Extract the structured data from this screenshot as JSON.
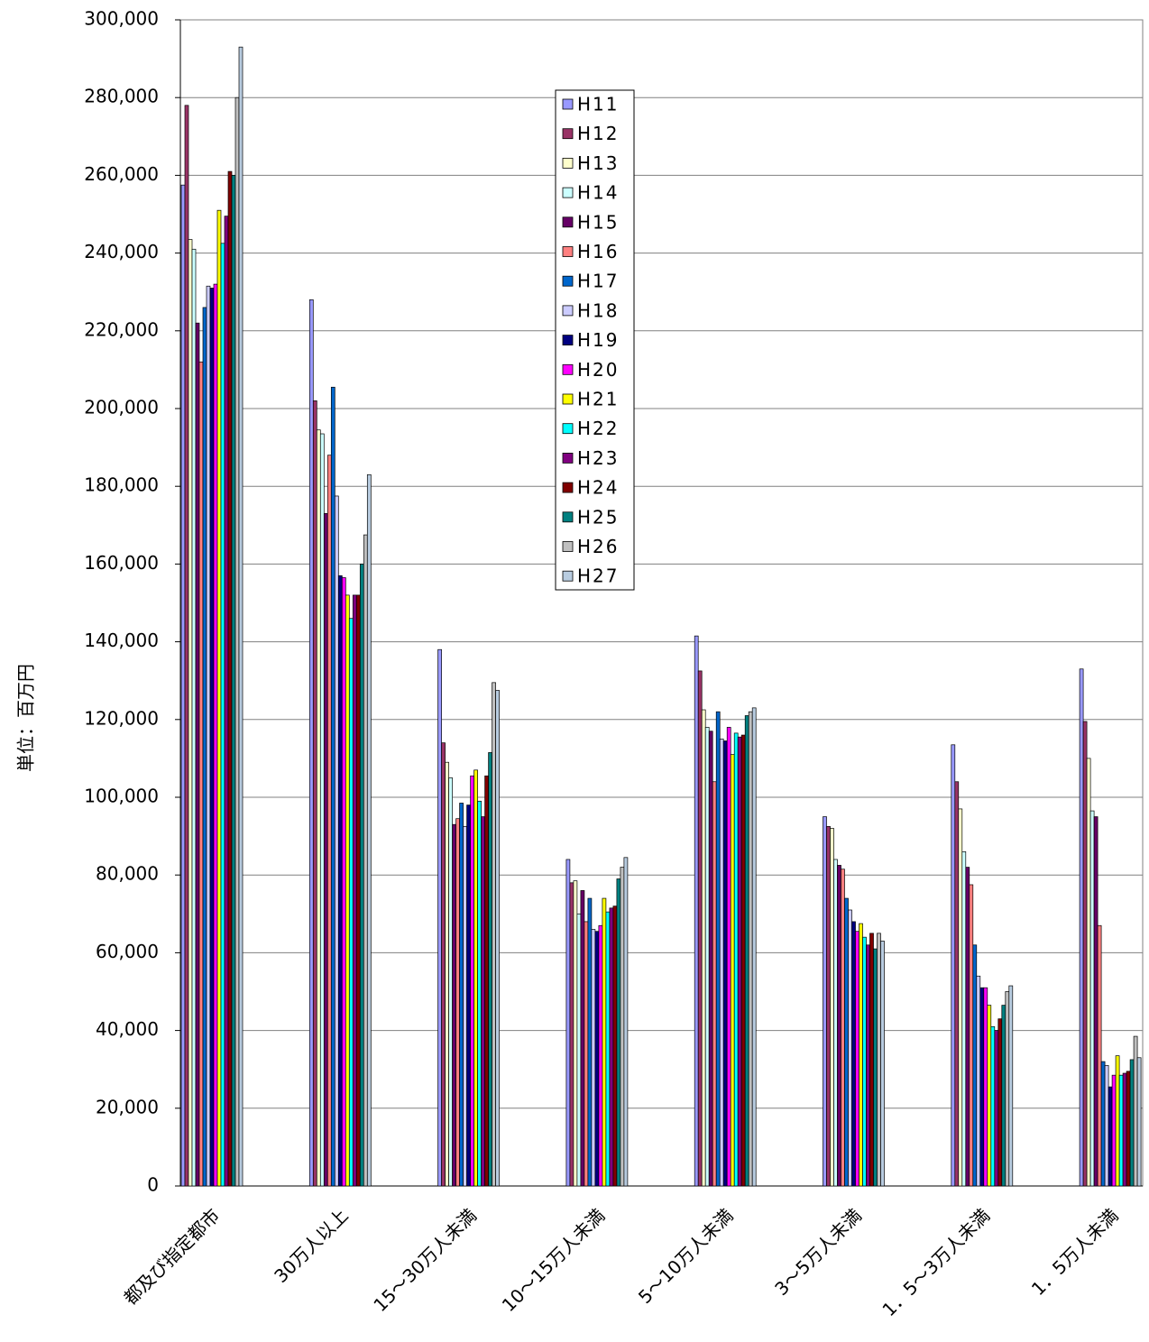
{
  "chart_data": {
    "type": "bar",
    "y_label": "単位：百万円",
    "categories": [
      "都及び指定都市",
      "30万人以上",
      "15～30万人未満",
      "10～15万人未満",
      "5～10万人未満",
      "3～5万人未満",
      "1．5～3万人未満",
      "1．5万人未満"
    ],
    "series": [
      {
        "name": "H11",
        "color": "#9999ff",
        "values": [
          257500,
          228000,
          138000,
          84000,
          141500,
          95000,
          113500,
          133000
        ]
      },
      {
        "name": "H12",
        "color": "#993366",
        "values": [
          278000,
          202000,
          114000,
          78000,
          132500,
          92500,
          104000,
          119500
        ]
      },
      {
        "name": "H13",
        "color": "#ffffcc",
        "values": [
          243500,
          194500,
          109000,
          78500,
          122500,
          92000,
          97000,
          110000
        ]
      },
      {
        "name": "H14",
        "color": "#ccffff",
        "values": [
          241000,
          193500,
          105000,
          70000,
          118000,
          84000,
          86000,
          96500
        ]
      },
      {
        "name": "H15",
        "color": "#660066",
        "values": [
          222000,
          173000,
          93000,
          76000,
          117000,
          82500,
          82000,
          95000
        ]
      },
      {
        "name": "H16",
        "color": "#ff8080",
        "values": [
          212000,
          188000,
          94500,
          68000,
          104000,
          81500,
          77500,
          67000
        ]
      },
      {
        "name": "H17",
        "color": "#0066cc",
        "values": [
          226000,
          205500,
          98500,
          74000,
          122000,
          74000,
          62000,
          32000
        ]
      },
      {
        "name": "H18",
        "color": "#ccccff",
        "values": [
          231500,
          177500,
          92500,
          66000,
          115000,
          71000,
          54000,
          31000
        ]
      },
      {
        "name": "H19",
        "color": "#000080",
        "values": [
          231000,
          157000,
          98000,
          65500,
          114500,
          68000,
          51000,
          25500
        ]
      },
      {
        "name": "H20",
        "color": "#ff00ff",
        "values": [
          232000,
          156500,
          105500,
          67000,
          118000,
          65500,
          51000,
          28500
        ]
      },
      {
        "name": "H21",
        "color": "#ffff00",
        "values": [
          251000,
          152000,
          107000,
          74000,
          111000,
          67500,
          46500,
          33500
        ]
      },
      {
        "name": "H22",
        "color": "#00ffff",
        "values": [
          242500,
          146000,
          99000,
          70500,
          116500,
          64000,
          41000,
          28500
        ]
      },
      {
        "name": "H23",
        "color": "#800080",
        "values": [
          249500,
          152000,
          95000,
          71500,
          115500,
          62000,
          40000,
          29000
        ]
      },
      {
        "name": "H24",
        "color": "#800000",
        "values": [
          261000,
          152000,
          105500,
          72000,
          116000,
          65000,
          43000,
          29500
        ]
      },
      {
        "name": "H25",
        "color": "#008080",
        "values": [
          260000,
          160000,
          111500,
          79000,
          121000,
          61000,
          46500,
          32500
        ]
      },
      {
        "name": "H26",
        "color": "#c0c0c0",
        "values": [
          280000,
          167500,
          129500,
          82000,
          122000,
          65000,
          50000,
          38500
        ]
      },
      {
        "name": "H27",
        "color": "#b8cce0",
        "values": [
          293000,
          183000,
          127500,
          84500,
          123000,
          63000,
          51500,
          33000
        ]
      }
    ],
    "ylim": [
      0,
      300000
    ],
    "yticks": [
      0,
      {
        "value": 20000,
        "label": "20,000"
      },
      {
        "value": 40000,
        "label": "40,000"
      },
      {
        "value": 60000,
        "label": "60,000"
      },
      {
        "value": 80000,
        "label": "80,000"
      },
      {
        "value": 100000,
        "label": "100,000"
      },
      {
        "value": 120000,
        "label": "120,000"
      },
      {
        "value": 140000,
        "label": "140,000"
      },
      {
        "value": 160000,
        "label": "160,000"
      },
      {
        "value": 180000,
        "label": "180,000"
      },
      {
        "value": 200000,
        "label": "200,000"
      },
      {
        "value": 220000,
        "label": "220,000"
      },
      {
        "value": 240000,
        "label": "240,000"
      },
      {
        "value": 260000,
        "label": "260,000"
      },
      {
        "value": 280000,
        "label": "280,000"
      },
      {
        "value": 300000,
        "label": "300,000"
      }
    ],
    "grid": true
  }
}
